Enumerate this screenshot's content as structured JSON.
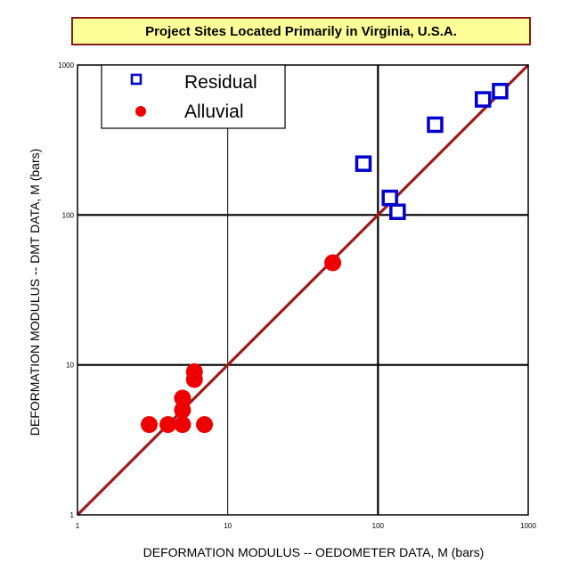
{
  "chart_data": {
    "type": "scatter",
    "title": "Project Sites Located Primarily in Virginia, U.S.A.",
    "xlabel": "DEFORMATION MODULUS -- OEDOMETER DATA, M (bars)",
    "ylabel": "DEFORMATION MODULUS -- DMT DATA, M (bars)",
    "xscale": "log",
    "yscale": "log",
    "xlim": [
      1,
      1000
    ],
    "ylim": [
      1,
      1000
    ],
    "xticks": [
      {
        "value": 1,
        "label": "1"
      },
      {
        "value": 10,
        "label": "10"
      },
      {
        "value": 100,
        "label": "100"
      },
      {
        "value": 1000,
        "label": "1000"
      }
    ],
    "yticks": [
      {
        "value": 1,
        "label": "1"
      },
      {
        "value": 10,
        "label": "10"
      },
      {
        "value": 100,
        "label": "100"
      },
      {
        "value": 1000,
        "label": "1000"
      }
    ],
    "grid": true,
    "legend_position": "top-left",
    "reference_line": {
      "from": [
        1,
        1
      ],
      "to": [
        1000,
        1000
      ],
      "color": "#a01a1a"
    },
    "series": [
      {
        "name": "Residual",
        "marker": "square",
        "color": "#0000cc",
        "points": [
          {
            "x": 80,
            "y": 220
          },
          {
            "x": 120,
            "y": 130
          },
          {
            "x": 135,
            "y": 105
          },
          {
            "x": 240,
            "y": 400
          },
          {
            "x": 500,
            "y": 590
          },
          {
            "x": 650,
            "y": 670
          }
        ]
      },
      {
        "name": "Alluvial",
        "marker": "circle",
        "color": "#ee0000",
        "points": [
          {
            "x": 3,
            "y": 4
          },
          {
            "x": 4,
            "y": 4
          },
          {
            "x": 5,
            "y": 4
          },
          {
            "x": 7,
            "y": 4
          },
          {
            "x": 5,
            "y": 5
          },
          {
            "x": 5,
            "y": 6
          },
          {
            "x": 6,
            "y": 8
          },
          {
            "x": 6,
            "y": 9
          },
          {
            "x": 50,
            "y": 48
          }
        ]
      }
    ]
  }
}
